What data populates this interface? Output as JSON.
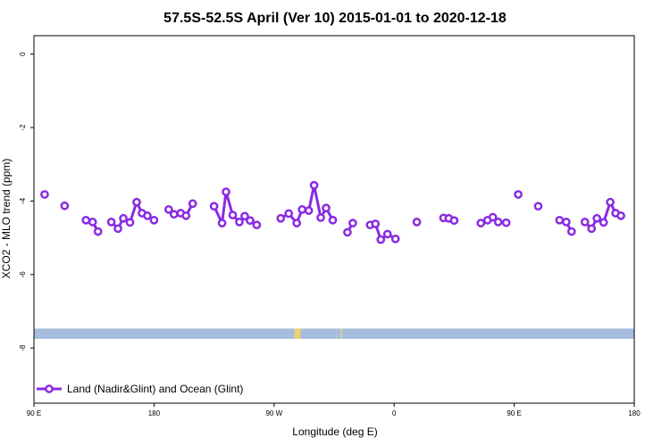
{
  "chart_data": {
    "type": "line",
    "title": "57.5S-52.5S April (Ver 10)   2015-01-01 to 2020-12-18",
    "xlabel": "Longitude (deg E)",
    "ylabel": "XCO2 - MLO trend (ppm)",
    "x_ticks": [
      {
        "value": 90,
        "label": "90 E"
      },
      {
        "value": 180,
        "label": "180"
      },
      {
        "value": 270,
        "label": "90 W"
      },
      {
        "value": 360,
        "label": "0"
      },
      {
        "value": 450,
        "label": "90 E"
      },
      {
        "value": 540,
        "label": "180"
      }
    ],
    "y_ticks": [
      {
        "value": 0,
        "label": "0"
      },
      {
        "value": -2,
        "label": "-2"
      },
      {
        "value": -4,
        "label": "-4"
      },
      {
        "value": -6,
        "label": "-6"
      },
      {
        "value": -8,
        "label": "-8"
      }
    ],
    "xlim": [
      90,
      540
    ],
    "ylim": [
      -9.5,
      0.5
    ],
    "grid": false,
    "legend_position": "bottom-left",
    "series": [
      {
        "name": "Land (Nadir&Glint) and Ocean (Glint)",
        "color": "#8a2be2",
        "segments": [
          [
            [
              98,
              -3.82
            ]
          ],
          [
            [
              113,
              -4.13
            ]
          ],
          [
            [
              129,
              -4.52
            ],
            [
              134,
              -4.57
            ],
            [
              138,
              -4.83
            ]
          ],
          [
            [
              148,
              -4.57
            ],
            [
              153,
              -4.75
            ],
            [
              157,
              -4.47
            ],
            [
              162,
              -4.58
            ],
            [
              167,
              -4.03
            ],
            [
              171,
              -4.33
            ],
            [
              175,
              -4.4
            ],
            [
              180,
              -4.52
            ]
          ],
          [
            [
              191,
              -4.23
            ],
            [
              195,
              -4.36
            ],
            [
              200,
              -4.33
            ],
            [
              204,
              -4.4
            ],
            [
              209,
              -4.07
            ]
          ],
          [
            [
              225,
              -4.14
            ],
            [
              231,
              -4.6
            ],
            [
              234,
              -3.75
            ],
            [
              239,
              -4.38
            ],
            [
              244,
              -4.57
            ],
            [
              248,
              -4.41
            ],
            [
              252,
              -4.53
            ],
            [
              257,
              -4.65
            ]
          ],
          [
            [
              275,
              -4.47
            ],
            [
              281,
              -4.34
            ],
            [
              287,
              -4.6
            ],
            [
              291,
              -4.23
            ],
            [
              296,
              -4.26
            ],
            [
              300,
              -3.57
            ],
            [
              305,
              -4.45
            ],
            [
              309,
              -4.19
            ],
            [
              314,
              -4.52
            ]
          ],
          [
            [
              325,
              -4.85
            ],
            [
              329,
              -4.6
            ]
          ],
          [
            [
              342,
              -4.65
            ],
            [
              346,
              -4.62
            ],
            [
              350,
              -5.05
            ],
            [
              355,
              -4.9
            ],
            [
              361,
              -5.03
            ]
          ],
          [
            [
              377,
              -4.57
            ]
          ],
          [
            [
              397,
              -4.46
            ],
            [
              401,
              -4.47
            ],
            [
              405,
              -4.53
            ]
          ],
          [
            [
              425,
              -4.6
            ],
            [
              430,
              -4.52
            ],
            [
              434,
              -4.44
            ],
            [
              438,
              -4.57
            ],
            [
              444,
              -4.59
            ]
          ],
          [
            [
              453,
              -3.82
            ]
          ],
          [
            [
              468,
              -4.14
            ]
          ],
          [
            [
              484,
              -4.52
            ],
            [
              489,
              -4.57
            ],
            [
              493,
              -4.83
            ]
          ],
          [
            [
              503,
              -4.57
            ],
            [
              508,
              -4.75
            ],
            [
              512,
              -4.47
            ],
            [
              517,
              -4.58
            ],
            [
              522,
              -4.03
            ],
            [
              526,
              -4.33
            ],
            [
              530,
              -4.4
            ]
          ]
        ]
      }
    ],
    "land_strip": {
      "y_range": [
        -7.75,
        -7.47
      ],
      "ocean_color": "#a7bddf",
      "land_color": "#e8d277",
      "land_x": [
        [
          285,
          290
        ],
        [
          320,
          321
        ]
      ]
    }
  }
}
